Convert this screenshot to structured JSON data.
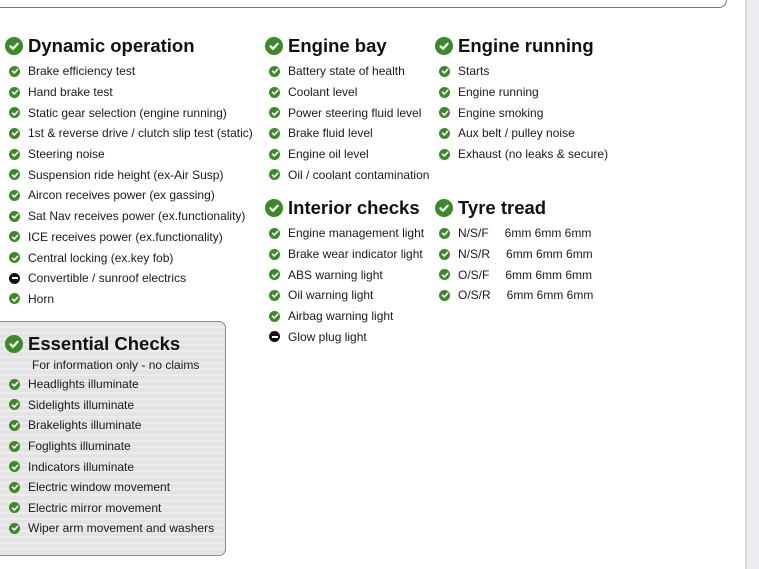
{
  "colors": {
    "pass": "#3a8a2a",
    "not_applicable": "#111111"
  },
  "sections": {
    "dynamic": {
      "title": "Dynamic operation",
      "items": [
        {
          "label": "Brake efficiency test",
          "status": "pass"
        },
        {
          "label": "Hand brake test",
          "status": "pass"
        },
        {
          "label": "Static gear selection (engine running)",
          "status": "pass"
        },
        {
          "label": "1st & reverse drive / clutch slip test (static)",
          "status": "pass"
        },
        {
          "label": "Steering noise",
          "status": "pass"
        },
        {
          "label": "Suspension ride height (ex-Air Susp)",
          "status": "pass"
        },
        {
          "label": "Aircon receives power (ex gassing)",
          "status": "pass"
        },
        {
          "label": "Sat Nav receives power (ex.functionality)",
          "status": "pass"
        },
        {
          "label": "ICE receives power (ex.functionality)",
          "status": "pass"
        },
        {
          "label": "Central locking (ex.key fob)",
          "status": "pass"
        },
        {
          "label": "Convertible / sunroof electrics",
          "status": "na"
        },
        {
          "label": "Horn",
          "status": "pass"
        }
      ]
    },
    "engine_bay": {
      "title": "Engine bay",
      "items": [
        {
          "label": "Battery state of health",
          "status": "pass"
        },
        {
          "label": "Coolant level",
          "status": "pass"
        },
        {
          "label": "Power steering fluid level",
          "status": "pass"
        },
        {
          "label": "Brake fluid level",
          "status": "pass"
        },
        {
          "label": "Engine oil level",
          "status": "pass"
        },
        {
          "label": "Oil / coolant contamination",
          "status": "pass"
        }
      ]
    },
    "engine_running": {
      "title": "Engine running",
      "items": [
        {
          "label": "Starts",
          "status": "pass"
        },
        {
          "label": "Engine running",
          "status": "pass"
        },
        {
          "label": "Engine smoking",
          "status": "pass"
        },
        {
          "label": "Aux belt / pulley noise",
          "status": "pass"
        },
        {
          "label": "Exhaust (no leaks & secure)",
          "status": "pass"
        }
      ]
    },
    "interior": {
      "title": "Interior checks",
      "items": [
        {
          "label": "Engine management light",
          "status": "pass"
        },
        {
          "label": "Brake wear indicator light",
          "status": "pass"
        },
        {
          "label": "ABS warning light",
          "status": "pass"
        },
        {
          "label": "Oil warning light",
          "status": "pass"
        },
        {
          "label": "Airbag warning light",
          "status": "pass"
        },
        {
          "label": "Glow plug light",
          "status": "na"
        }
      ]
    },
    "tyre": {
      "title": "Tyre tread",
      "items": [
        {
          "label": "N/S/F",
          "status": "pass",
          "tread": "6mm 6mm 6mm"
        },
        {
          "label": "N/S/R",
          "status": "pass",
          "tread": "6mm 6mm 6mm"
        },
        {
          "label": "O/S/F",
          "status": "pass",
          "tread": "6mm 6mm 6mm"
        },
        {
          "label": "O/S/R",
          "status": "pass",
          "tread": "6mm 6mm 6mm"
        }
      ]
    },
    "essential": {
      "title": "Essential Checks",
      "note": "For information only - no claims",
      "items": [
        {
          "label": "Headlights illuminate",
          "status": "pass"
        },
        {
          "label": "Sidelights illuminate",
          "status": "pass"
        },
        {
          "label": "Brakelights illuminate",
          "status": "pass"
        },
        {
          "label": "Foglights illuminate",
          "status": "pass"
        },
        {
          "label": "Indicators illuminate",
          "status": "pass"
        },
        {
          "label": "Electric window movement",
          "status": "pass"
        },
        {
          "label": "Electric mirror movement",
          "status": "pass"
        },
        {
          "label": "Wiper arm movement and washers",
          "status": "pass"
        }
      ]
    }
  }
}
